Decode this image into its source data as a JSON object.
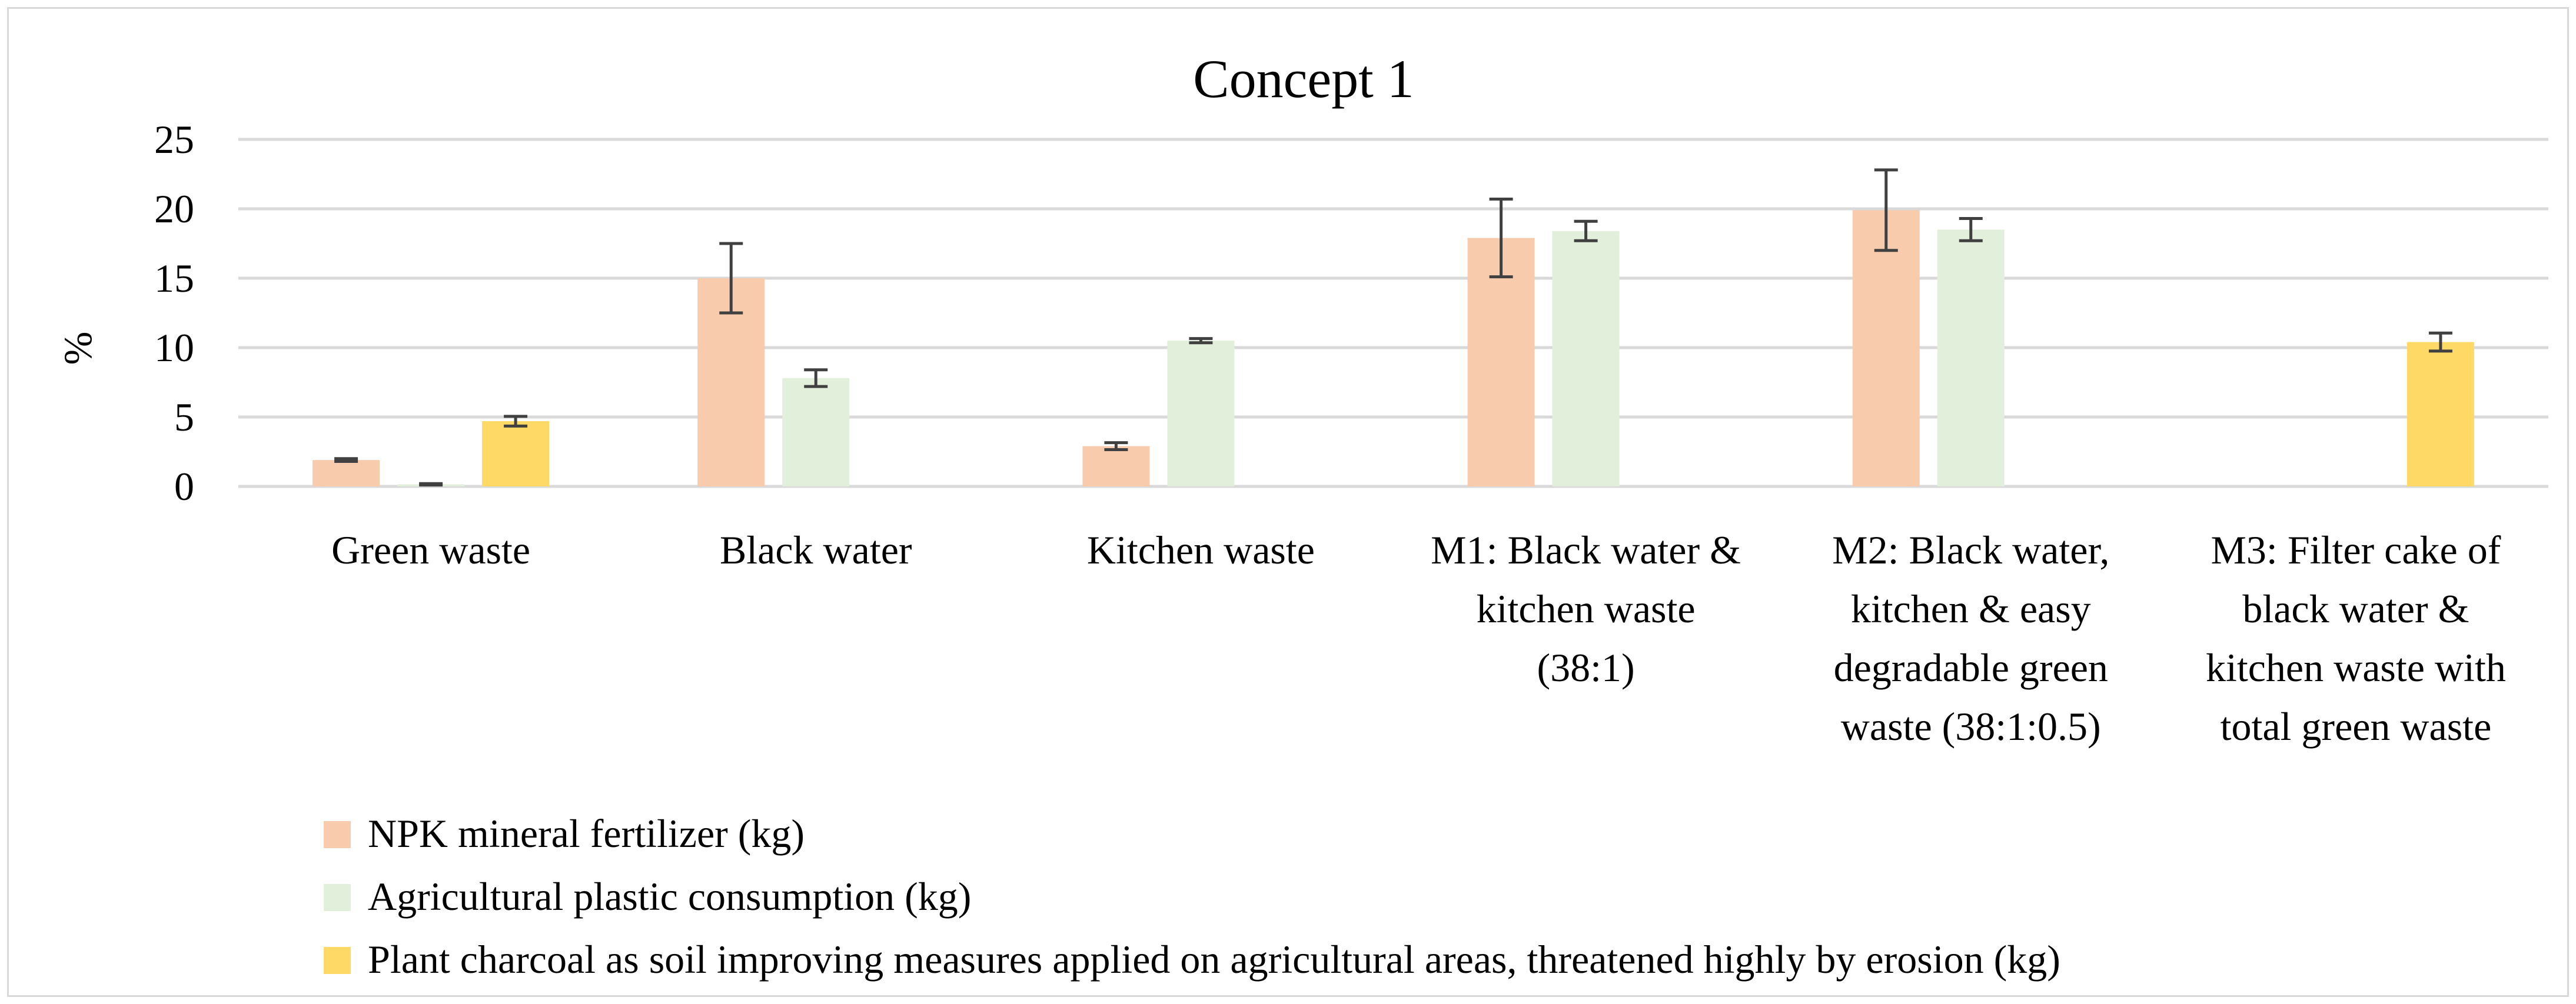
{
  "chart_data": {
    "type": "bar",
    "title": "Concept 1",
    "ylabel": "%",
    "xlabel": "",
    "ylim": [
      0,
      25
    ],
    "yticks": [
      0,
      5,
      10,
      15,
      20,
      25
    ],
    "grid": true,
    "legend_position": "bottom-left",
    "categories": [
      [
        "Green waste"
      ],
      [
        "Black water"
      ],
      [
        "Kitchen waste"
      ],
      [
        "M1: Black water &",
        "kitchen waste",
        "(38:1)"
      ],
      [
        "M2: Black water,",
        "kitchen & easy",
        "degradable green",
        "waste (38:1:0.5)"
      ],
      [
        "M3: Filter cake of",
        "black water &",
        "kitchen waste with",
        "total green waste"
      ]
    ],
    "series": [
      {
        "name": "NPK mineral fertilizer (kg)",
        "color": "#f8cbad",
        "values": [
          1.9,
          15.0,
          2.9,
          17.9,
          19.9,
          null
        ],
        "errors": [
          0.1,
          2.5,
          0.25,
          2.8,
          2.9,
          null
        ]
      },
      {
        "name": "Agricultural plastic consumption (kg)",
        "color": "#e2efda",
        "values": [
          0.15,
          7.8,
          10.5,
          18.4,
          18.5,
          null
        ],
        "errors": [
          0.05,
          0.6,
          0.15,
          0.7,
          0.8,
          null
        ]
      },
      {
        "name": "Plant charcoal as soil improving measures applied on agricultural areas, threatened highly by erosion (kg)",
        "color": "#ffd966",
        "values": [
          4.7,
          null,
          null,
          null,
          null,
          10.4
        ],
        "errors": [
          0.35,
          null,
          null,
          null,
          null,
          0.65
        ]
      }
    ],
    "error_bar_color": "#404040",
    "grid_color": "#d9d9d9"
  }
}
